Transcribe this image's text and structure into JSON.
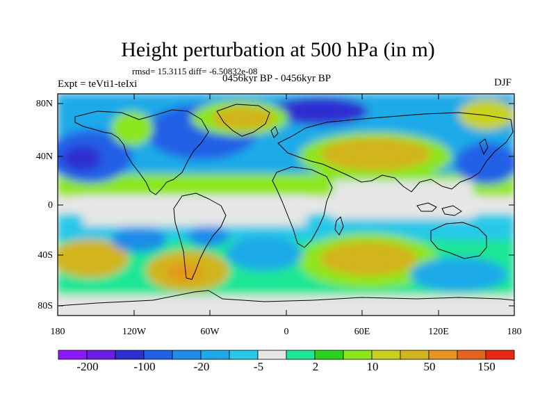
{
  "title": "Height perturbation at 500 hPa (in m)",
  "stats": "rmsd= 15.3115 diff= -6.50832e-08",
  "experiment": "Expt = teVti1-teIxi",
  "period": "0456kyr BP - 0456kyr BP",
  "season": "DJF",
  "map": {
    "projection": "cylindrical-equidistant",
    "lon_range": [
      -180,
      180
    ],
    "lat_range": [
      -90,
      90
    ],
    "lat_labels": [
      "80N",
      "40N",
      "0",
      "40S",
      "80S"
    ],
    "lon_labels": [
      "180",
      "120W",
      "60W",
      "0",
      "60E",
      "120E",
      "180"
    ],
    "features": [
      "coastlines",
      "filled-contours"
    ]
  },
  "colorbar": {
    "colors": [
      "#8c1aff",
      "#6a1ee6",
      "#2d2dd0",
      "#2060e6",
      "#1e8ce8",
      "#1eaae8",
      "#28c8e8",
      "#e6e6e6",
      "#1ee696",
      "#2ad21e",
      "#8ce61e",
      "#c8d21e",
      "#d2b41e",
      "#e6961e",
      "#e6641e",
      "#e62814"
    ],
    "labels": [
      "-200",
      "-100",
      "-20",
      "-5",
      "2",
      "10",
      "50",
      "150"
    ]
  }
}
